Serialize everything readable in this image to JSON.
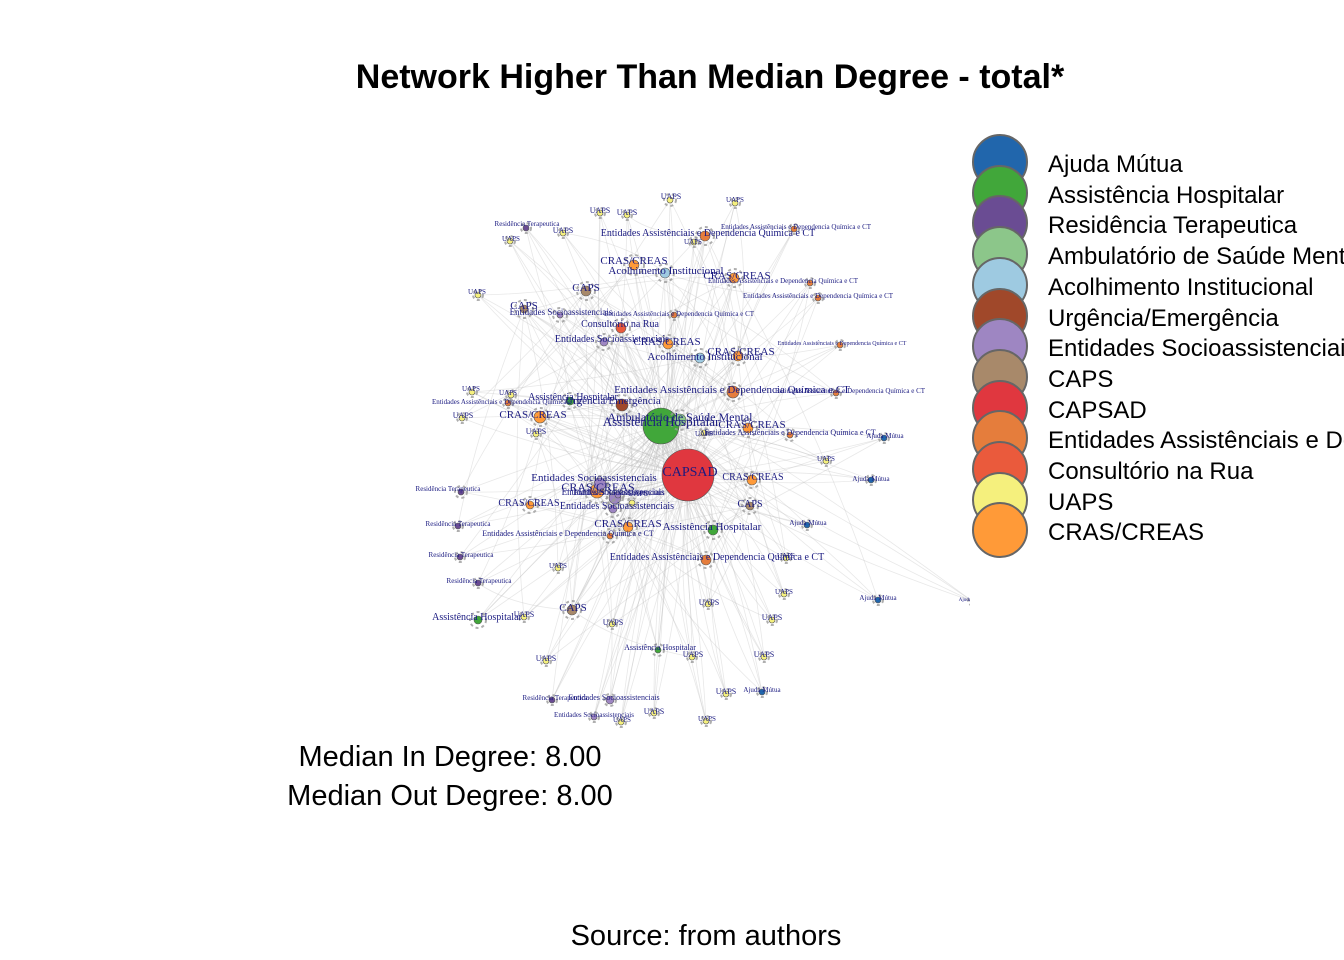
{
  "title": "Network Higher Than Median Degree - total*",
  "legend": [
    {
      "label": "Ajuda Mútua",
      "color": "#2166ac"
    },
    {
      "label": "Assistência Hospitalar",
      "color": "#41a73a"
    },
    {
      "label": "Residência Terapeutica",
      "color": "#6a4c93"
    },
    {
      "label": "Ambulatório de Saúde Mental",
      "color": "#8cc68a"
    },
    {
      "label": "Acolhimento Institucional",
      "color": "#9ecae1"
    },
    {
      "label": "Urgência/Emergência",
      "color": "#a0482a"
    },
    {
      "label": "Entidades Socioassistenciais",
      "color": "#9e86c2"
    },
    {
      "label": "CAPS",
      "color": "#a8896a"
    },
    {
      "label": "CAPSAD",
      "color": "#e0373f"
    },
    {
      "label": "Entidades Assistênciais e Dependencia Química e CT",
      "color": "#e57d3c"
    },
    {
      "label": "Consultório na Rua",
      "color": "#ea5a3c"
    },
    {
      "label": "UAPS",
      "color": "#f5f07d"
    },
    {
      "label": "CRAS/CREAS",
      "color": "#ff9a38"
    }
  ],
  "medians": {
    "in": "Median In Degree: 8.00",
    "out": "Median Out Degree: 8.00"
  },
  "source": "Source: from authors",
  "nodes": [
    {
      "label": "CAPSAD",
      "color": "#e0373f",
      "hub": true,
      "big": true
    },
    {
      "label": "Assistência Hospitalar",
      "color": "#41a73a",
      "hub": true,
      "big": true
    },
    {
      "label": "Ambulatório de Saúde Mental",
      "color": "#8cc68a",
      "hub": true
    },
    {
      "label": "Urgência/Emergência",
      "color": "#a0482a",
      "hub": true
    },
    {
      "label": "CRAS/CREAS",
      "color": "#ff9a38",
      "hub": true
    },
    {
      "label": "CRAS/CREAS",
      "color": "#ff9a38",
      "hub": true
    },
    {
      "label": "Entidades Socioassistenciais",
      "color": "#9e86c2",
      "hub": true
    },
    {
      "label": "Entidades Socioassistenciais",
      "color": "#9e86c2",
      "hub": true
    },
    {
      "label": "Entidades Assistênciais e Dependencia Química e CT",
      "color": "#e57d3c",
      "hub": true
    },
    {
      "label": "Entidades Assistênciais e Dependencia Química e CT",
      "color": "#e57d3c",
      "hub": true
    },
    {
      "label": "Entidades Assistênciais e Dependencia Química e CT",
      "color": "#e57d3c",
      "hub": true
    },
    {
      "label": "Acolhimento Institucional",
      "color": "#9ecae1",
      "hub": true
    },
    {
      "label": "Acolhimento Institucional",
      "color": "#9ecae1",
      "hub": true
    },
    {
      "label": "CRAS/CREAS",
      "color": "#ff9a38",
      "hub": true
    },
    {
      "label": "CRAS/CREAS",
      "color": "#ff9a38",
      "hub": true
    },
    {
      "label": "CRAS/CREAS",
      "color": "#ff9a38",
      "hub": true
    },
    {
      "label": "CRAS/CREAS",
      "color": "#ff9a38",
      "hub": true
    },
    {
      "label": "CRAS/CREAS",
      "color": "#ff9a38",
      "hub": true
    },
    {
      "label": "CRAS/CREAS",
      "color": "#ff9a38",
      "hub": true
    },
    {
      "label": "CRAS/CREAS",
      "color": "#ff9a38",
      "hub": true
    },
    {
      "label": "CRAS/CREAS",
      "color": "#ff9a38",
      "hub": false
    },
    {
      "label": "CAPS",
      "color": "#a8896a",
      "hub": true
    },
    {
      "label": "CAPS",
      "color": "#a8896a",
      "hub": true
    },
    {
      "label": "CAPS",
      "color": "#a8896a",
      "hub": true
    },
    {
      "label": "CAPS",
      "color": "#a8896a",
      "hub": true
    },
    {
      "label": "Consultório na Rua",
      "color": "#ea5a3c",
      "hub": true
    },
    {
      "label": "Assistência Hospitalar",
      "color": "#41a73a",
      "hub": true
    },
    {
      "label": "Assistência Hospitalar",
      "color": "#41a73a",
      "hub": false
    },
    {
      "label": "Assistência Hospitalar",
      "color": "#41a73a",
      "hub": false
    },
    {
      "label": "Assistência Hospitalar",
      "color": "#41a73a",
      "hub": false
    },
    {
      "label": "Entidades Socioassistenciais",
      "color": "#9e86c2",
      "hub": false
    },
    {
      "label": "Entidades Socioassistenciais",
      "color": "#9e86c2",
      "hub": false
    },
    {
      "label": "Entidades Socioassistenciais",
      "color": "#9e86c2",
      "hub": false
    },
    {
      "label": "Entidades Socioassistenciais",
      "color": "#9e86c2",
      "hub": false
    },
    {
      "label": "Entidades Socioassistenciais",
      "color": "#9e86c2",
      "hub": false
    },
    {
      "label": "Entidades Socioassistenciais",
      "color": "#9e86c2",
      "hub": false
    },
    {
      "label": "Entidades Assistênciais e Dependencia Química e CT",
      "color": "#e57d3c",
      "hub": false
    },
    {
      "label": "Entidades Assistênciais e Dependencia Química e CT",
      "color": "#e57d3c",
      "hub": false
    },
    {
      "label": "Entidades Assistênciais e Dependencia Química e CT",
      "color": "#e57d3c",
      "hub": false
    },
    {
      "label": "Entidades Assistênciais e Dependencia Química e CT",
      "color": "#e57d3c",
      "hub": false
    },
    {
      "label": "Entidades Assistênciais e Dependencia Química e CT",
      "color": "#e57d3c",
      "hub": false
    },
    {
      "label": "Entidades Assistênciais e Dependencia Química e CT",
      "color": "#e57d3c",
      "hub": false
    },
    {
      "label": "Entidades Assistênciais e Dependencia Química e CT",
      "color": "#e57d3c",
      "hub": false
    },
    {
      "label": "Entidades Assistênciais e Dependencia Química e CT",
      "color": "#e57d3c",
      "hub": false
    },
    {
      "label": "Entidades Assistênciais e Dependencia Química e CT",
      "color": "#e57d3c",
      "hub": false
    },
    {
      "label": "Residência Terapeutica",
      "color": "#6a4c93",
      "hub": false
    },
    {
      "label": "Residência Terapeutica",
      "color": "#6a4c93",
      "hub": false
    },
    {
      "label": "Residência Terapeutica",
      "color": "#6a4c93",
      "hub": false
    },
    {
      "label": "Residência Terapeutica",
      "color": "#6a4c93",
      "hub": false
    },
    {
      "label": "Residência Terapeutica",
      "color": "#6a4c93",
      "hub": false
    },
    {
      "label": "Residência Terapeutica",
      "color": "#6a4c93",
      "hub": false
    },
    {
      "label": "Ajuda Mútua",
      "color": "#2166ac",
      "hub": false
    },
    {
      "label": "Ajuda Mútua",
      "color": "#2166ac",
      "hub": false
    },
    {
      "label": "Ajuda Mútua",
      "color": "#2166ac",
      "hub": false
    },
    {
      "label": "Ajuda Mútua",
      "color": "#2166ac",
      "hub": false
    },
    {
      "label": "Ajuda Mútua",
      "color": "#2166ac",
      "hub": false
    },
    {
      "label": "Ajuda Mútua",
      "color": "#2166ac",
      "hub": false
    },
    {
      "label": "UAPS",
      "color": "#f5f07d",
      "hub": false
    },
    {
      "label": "UAPS",
      "color": "#f5f07d",
      "hub": false
    },
    {
      "label": "UAPS",
      "color": "#f5f07d",
      "hub": false
    },
    {
      "label": "UAPS",
      "color": "#f5f07d",
      "hub": false
    },
    {
      "label": "UAPS",
      "color": "#f5f07d",
      "hub": false
    },
    {
      "label": "UAPS",
      "color": "#f5f07d",
      "hub": false
    },
    {
      "label": "UAPS",
      "color": "#f5f07d",
      "hub": false
    },
    {
      "label": "UAPS",
      "color": "#f5f07d",
      "hub": false
    },
    {
      "label": "UAPS",
      "color": "#f5f07d",
      "hub": false
    },
    {
      "label": "UAPS",
      "color": "#f5f07d",
      "hub": false
    },
    {
      "label": "UAPS",
      "color": "#f5f07d",
      "hub": false
    },
    {
      "label": "UAPS",
      "color": "#f5f07d",
      "hub": false
    },
    {
      "label": "UAPS",
      "color": "#f5f07d",
      "hub": false
    },
    {
      "label": "UAPS",
      "color": "#f5f07d",
      "hub": false
    },
    {
      "label": "UAPS",
      "color": "#f5f07d",
      "hub": false
    },
    {
      "label": "UAPS",
      "color": "#f5f07d",
      "hub": false
    },
    {
      "label": "UAPS",
      "color": "#f5f07d",
      "hub": false
    },
    {
      "label": "UAPS",
      "color": "#f5f07d",
      "hub": false
    },
    {
      "label": "UAPS",
      "color": "#f5f07d",
      "hub": false
    },
    {
      "label": "UAPS",
      "color": "#f5f07d",
      "hub": false
    },
    {
      "label": "UAPS",
      "color": "#f5f07d",
      "hub": false
    },
    {
      "label": "UAPS",
      "color": "#f5f07d",
      "hub": false
    },
    {
      "label": "UAPS",
      "color": "#f5f07d",
      "hub": false
    },
    {
      "label": "UAPS",
      "color": "#f5f07d",
      "hub": false
    },
    {
      "label": "UAPS",
      "color": "#f5f07d",
      "hub": false
    },
    {
      "label": "UAPS",
      "color": "#f5f07d",
      "hub": false
    },
    {
      "label": "UAPS",
      "color": "#f5f07d",
      "hub": false
    },
    {
      "label": "UAPS",
      "color": "#f5f07d",
      "hub": false
    },
    {
      "label": "UAPS",
      "color": "#f5f07d",
      "hub": false
    }
  ]
}
